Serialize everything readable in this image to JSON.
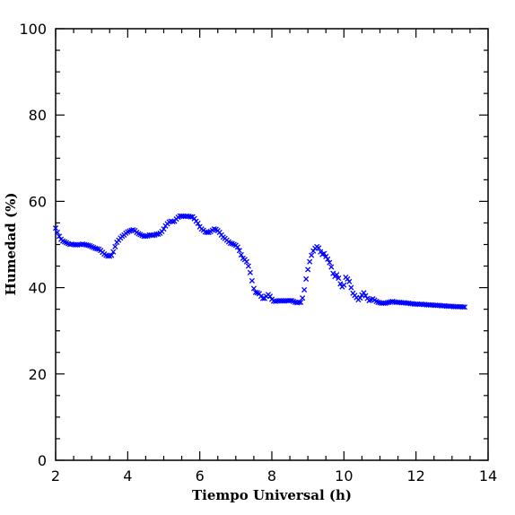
{
  "chart_data": {
    "type": "scatter",
    "xlabel": "Tiempo Universal (h)",
    "ylabel": "Humedad (%)",
    "xlim": [
      2,
      14
    ],
    "ylim": [
      0,
      100
    ],
    "xticks": [
      2,
      4,
      6,
      8,
      10,
      12,
      14
    ],
    "yticks": [
      0,
      20,
      40,
      60,
      80,
      100
    ],
    "x_minor_step": 0.5,
    "y_minor_step": 5,
    "grid": false,
    "marker": "x",
    "color": "#0000ff",
    "series": [
      {
        "points": [
          [
            2.0,
            53.8
          ],
          [
            2.05,
            52.8
          ],
          [
            2.1,
            51.9
          ],
          [
            2.15,
            51.2
          ],
          [
            2.2,
            50.8
          ],
          [
            2.25,
            50.6
          ],
          [
            2.3,
            50.4
          ],
          [
            2.35,
            50.2
          ],
          [
            2.4,
            50.0
          ],
          [
            2.45,
            50.1
          ],
          [
            2.5,
            50.0
          ],
          [
            2.55,
            49.9
          ],
          [
            2.6,
            49.9
          ],
          [
            2.65,
            50.0
          ],
          [
            2.7,
            50.0
          ],
          [
            2.75,
            50.1
          ],
          [
            2.8,
            50.0
          ],
          [
            2.85,
            49.9
          ],
          [
            2.9,
            49.8
          ],
          [
            2.95,
            49.7
          ],
          [
            3.0,
            49.5
          ],
          [
            3.05,
            49.3
          ],
          [
            3.1,
            49.1
          ],
          [
            3.15,
            49.0
          ],
          [
            3.2,
            48.9
          ],
          [
            3.25,
            48.6
          ],
          [
            3.3,
            48.2
          ],
          [
            3.35,
            47.8
          ],
          [
            3.4,
            47.5
          ],
          [
            3.45,
            47.3
          ],
          [
            3.5,
            47.3
          ],
          [
            3.55,
            47.5
          ],
          [
            3.6,
            48.3
          ],
          [
            3.65,
            49.5
          ],
          [
            3.7,
            50.5
          ],
          [
            3.75,
            51.0
          ],
          [
            3.8,
            51.5
          ],
          [
            3.85,
            51.9
          ],
          [
            3.9,
            52.2
          ],
          [
            3.95,
            52.6
          ],
          [
            4.0,
            52.9
          ],
          [
            4.05,
            53.1
          ],
          [
            4.1,
            53.3
          ],
          [
            4.15,
            53.4
          ],
          [
            4.2,
            53.2
          ],
          [
            4.25,
            52.8
          ],
          [
            4.3,
            52.5
          ],
          [
            4.35,
            52.3
          ],
          [
            4.4,
            52.1
          ],
          [
            4.45,
            51.9
          ],
          [
            4.5,
            51.9
          ],
          [
            4.55,
            52.0
          ],
          [
            4.6,
            52.2
          ],
          [
            4.65,
            52.2
          ],
          [
            4.7,
            52.1
          ],
          [
            4.75,
            52.2
          ],
          [
            4.8,
            52.4
          ],
          [
            4.85,
            52.4
          ],
          [
            4.9,
            52.6
          ],
          [
            4.95,
            53.0
          ],
          [
            5.0,
            53.6
          ],
          [
            5.05,
            54.3
          ],
          [
            5.1,
            54.8
          ],
          [
            5.15,
            55.2
          ],
          [
            5.2,
            55.4
          ],
          [
            5.25,
            55.3
          ],
          [
            5.3,
            55.4
          ],
          [
            5.35,
            55.9
          ],
          [
            5.4,
            56.3
          ],
          [
            5.45,
            56.6
          ],
          [
            5.5,
            56.6
          ],
          [
            5.55,
            56.5
          ],
          [
            5.6,
            56.5
          ],
          [
            5.65,
            56.6
          ],
          [
            5.7,
            56.5
          ],
          [
            5.75,
            56.4
          ],
          [
            5.8,
            56.4
          ],
          [
            5.85,
            56.0
          ],
          [
            5.9,
            55.4
          ],
          [
            5.95,
            54.9
          ],
          [
            6.0,
            54.1
          ],
          [
            6.05,
            53.6
          ],
          [
            6.1,
            53.3
          ],
          [
            6.15,
            52.9
          ],
          [
            6.2,
            52.8
          ],
          [
            6.25,
            52.8
          ],
          [
            6.3,
            53.0
          ],
          [
            6.35,
            53.3
          ],
          [
            6.4,
            53.6
          ],
          [
            6.45,
            53.5
          ],
          [
            6.5,
            53.2
          ],
          [
            6.55,
            52.8
          ],
          [
            6.6,
            52.2
          ],
          [
            6.65,
            51.7
          ],
          [
            6.7,
            51.4
          ],
          [
            6.75,
            51.0
          ],
          [
            6.8,
            50.6
          ],
          [
            6.85,
            50.3
          ],
          [
            6.9,
            50.2
          ],
          [
            6.95,
            50.0
          ],
          [
            7.0,
            49.8
          ],
          [
            7.05,
            49.4
          ],
          [
            7.1,
            48.6
          ],
          [
            7.15,
            47.6
          ],
          [
            7.2,
            46.8
          ],
          [
            7.25,
            46.5
          ],
          [
            7.3,
            46.0
          ],
          [
            7.35,
            45.0
          ],
          [
            7.4,
            43.5
          ],
          [
            7.45,
            41.6
          ],
          [
            7.5,
            39.8
          ],
          [
            7.55,
            38.9
          ],
          [
            7.6,
            38.8
          ],
          [
            7.65,
            38.6
          ],
          [
            7.7,
            38.0
          ],
          [
            7.75,
            37.5
          ],
          [
            7.8,
            37.5
          ],
          [
            7.85,
            38.0
          ],
          [
            7.9,
            38.4
          ],
          [
            7.95,
            38.0
          ],
          [
            8.0,
            37.3
          ],
          [
            8.05,
            36.9
          ],
          [
            8.1,
            36.8
          ],
          [
            8.15,
            36.9
          ],
          [
            8.2,
            37.0
          ],
          [
            8.25,
            37.0
          ],
          [
            8.3,
            36.9
          ],
          [
            8.35,
            36.9
          ],
          [
            8.4,
            37.0
          ],
          [
            8.45,
            37.0
          ],
          [
            8.5,
            37.0
          ],
          [
            8.55,
            37.0
          ],
          [
            8.6,
            36.8
          ],
          [
            8.65,
            36.6
          ],
          [
            8.7,
            36.5
          ],
          [
            8.75,
            36.6
          ],
          [
            8.8,
            36.6
          ],
          [
            8.85,
            37.6
          ],
          [
            8.9,
            39.5
          ],
          [
            8.95,
            42.0
          ],
          [
            9.0,
            44.2
          ],
          [
            9.05,
            46.0
          ],
          [
            9.1,
            47.5
          ],
          [
            9.15,
            48.5
          ],
          [
            9.2,
            49.1
          ],
          [
            9.25,
            49.5
          ],
          [
            9.3,
            49.2
          ],
          [
            9.35,
            48.3
          ],
          [
            9.4,
            47.7
          ],
          [
            9.45,
            47.9
          ],
          [
            9.5,
            47.2
          ],
          [
            9.55,
            46.6
          ],
          [
            9.6,
            45.8
          ],
          [
            9.65,
            44.8
          ],
          [
            9.7,
            43.3
          ],
          [
            9.75,
            42.6
          ],
          [
            9.8,
            43.0
          ],
          [
            9.85,
            42.2
          ],
          [
            9.9,
            40.9
          ],
          [
            9.95,
            40.2
          ],
          [
            10.0,
            40.6
          ],
          [
            10.05,
            42.4
          ],
          [
            10.1,
            42.0
          ],
          [
            10.15,
            41.4
          ],
          [
            10.2,
            40.0
          ],
          [
            10.25,
            38.7
          ],
          [
            10.3,
            38.2
          ],
          [
            10.35,
            37.7
          ],
          [
            10.4,
            37.2
          ],
          [
            10.45,
            37.6
          ],
          [
            10.5,
            38.3
          ],
          [
            10.55,
            38.8
          ],
          [
            10.6,
            38.1
          ],
          [
            10.65,
            37.5
          ],
          [
            10.7,
            37.0
          ],
          [
            10.75,
            37.2
          ],
          [
            10.8,
            37.4
          ],
          [
            10.85,
            37.1
          ],
          [
            10.9,
            36.8
          ],
          [
            10.95,
            36.6
          ],
          [
            11.0,
            36.5
          ],
          [
            11.05,
            36.4
          ],
          [
            11.1,
            36.4
          ],
          [
            11.15,
            36.4
          ],
          [
            11.2,
            36.5
          ],
          [
            11.25,
            36.6
          ],
          [
            11.3,
            36.7
          ],
          [
            11.35,
            36.8
          ],
          [
            11.4,
            36.7
          ],
          [
            11.45,
            36.6
          ],
          [
            11.5,
            36.6
          ],
          [
            11.55,
            36.6
          ],
          [
            11.6,
            36.5
          ],
          [
            11.65,
            36.5
          ],
          [
            11.7,
            36.5
          ],
          [
            11.75,
            36.4
          ],
          [
            11.8,
            36.4
          ],
          [
            11.85,
            36.3
          ],
          [
            11.9,
            36.3
          ],
          [
            11.95,
            36.2
          ],
          [
            12.0,
            36.2
          ],
          [
            12.05,
            36.2
          ],
          [
            12.1,
            36.1
          ],
          [
            12.15,
            36.2
          ],
          [
            12.2,
            36.1
          ],
          [
            12.25,
            36.1
          ],
          [
            12.3,
            36.0
          ],
          [
            12.35,
            36.0
          ],
          [
            12.4,
            36.0
          ],
          [
            12.45,
            36.0
          ],
          [
            12.5,
            35.9
          ],
          [
            12.55,
            35.9
          ],
          [
            12.6,
            35.9
          ],
          [
            12.65,
            35.9
          ],
          [
            12.7,
            35.8
          ],
          [
            12.75,
            35.8
          ],
          [
            12.8,
            35.8
          ],
          [
            12.85,
            35.7
          ],
          [
            12.9,
            35.7
          ],
          [
            12.95,
            35.7
          ],
          [
            13.0,
            35.7
          ],
          [
            13.05,
            35.6
          ],
          [
            13.1,
            35.6
          ],
          [
            13.15,
            35.6
          ],
          [
            13.2,
            35.6
          ],
          [
            13.25,
            35.6
          ],
          [
            13.3,
            35.5
          ],
          [
            13.35,
            35.5
          ]
        ]
      }
    ]
  }
}
